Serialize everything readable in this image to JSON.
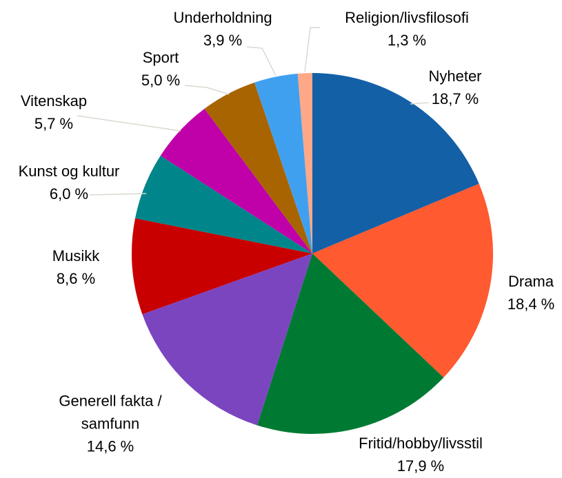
{
  "chart_data": {
    "type": "pie",
    "categories": [
      "Nyheter",
      "Drama",
      "Fritid/hobby/livsstil",
      "Generell fakta / samfunn",
      "Musikk",
      "Kunst og kultur",
      "Vitenskap",
      "Sport",
      "Underholdning",
      "Religion/livsfilosofi"
    ],
    "values": [
      18.7,
      18.4,
      17.9,
      14.6,
      8.6,
      6.0,
      5.7,
      5.0,
      3.9,
      1.3
    ],
    "value_labels": [
      "18,7 %",
      "18,4 %",
      "17,9 %",
      "14,6 %",
      "8,6 %",
      "6,0 %",
      "5,7 %",
      "5,0 %",
      "3,9 %",
      "1,3 %"
    ],
    "colors": [
      "#1360a6",
      "#ff5a30",
      "#007a33",
      "#7b45c0",
      "#c80000",
      "#00868a",
      "#c000a8",
      "#a86400",
      "#40a0f0",
      "#ffa888"
    ]
  }
}
